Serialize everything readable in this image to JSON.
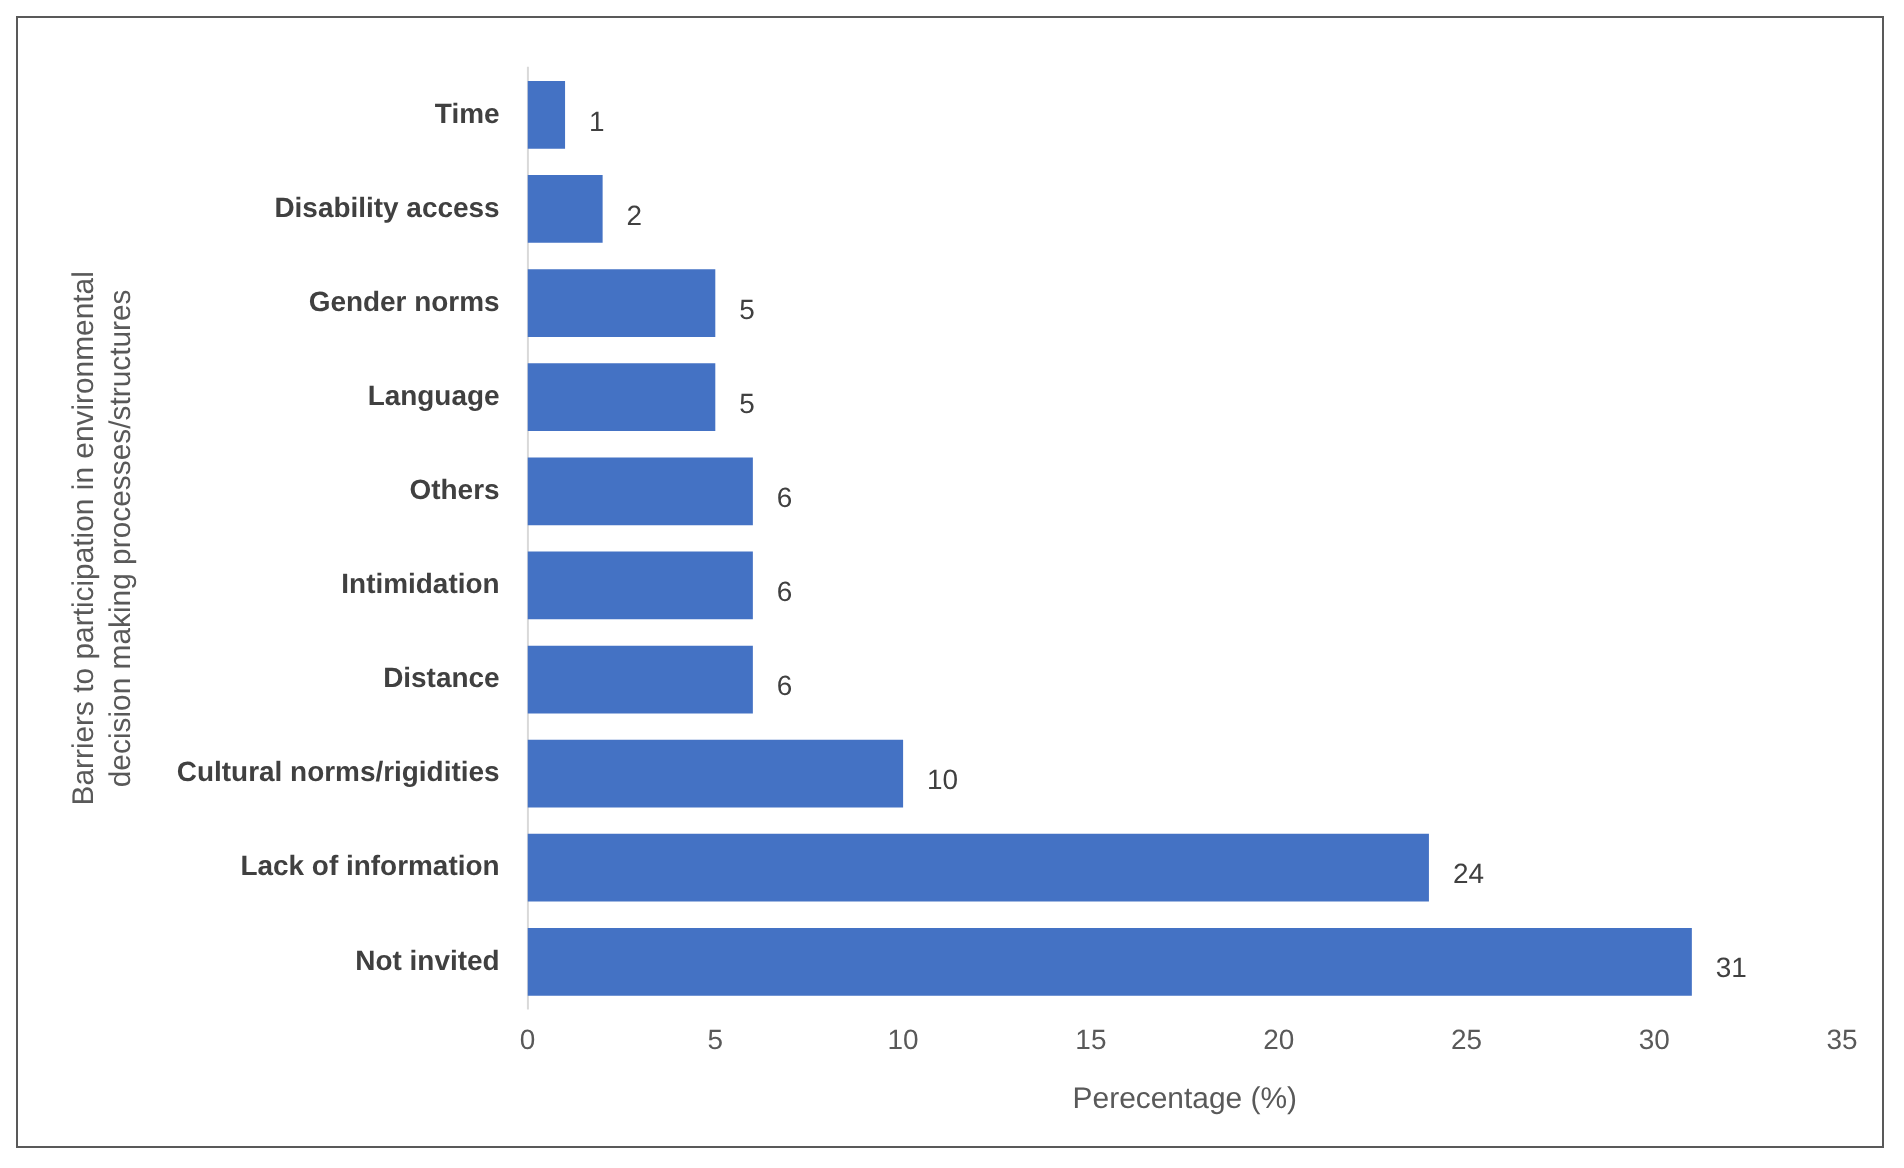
{
  "chart_data": {
    "type": "bar",
    "orientation": "horizontal",
    "categories": [
      "Time",
      "Disability access",
      "Gender norms",
      "Language",
      "Others",
      "Intimidation",
      "Distance",
      "Cultural norms/rigidities",
      "Lack of information",
      "Not invited"
    ],
    "values": [
      1,
      2,
      5,
      5,
      6,
      6,
      6,
      10,
      24,
      31
    ],
    "color": "#4472c4",
    "xlim": [
      0,
      35
    ],
    "xticks": [
      0,
      5,
      10,
      15,
      20,
      25,
      30,
      35
    ],
    "grid": false,
    "data_labels": true,
    "legend": false,
    "xlabel": "Perecentage (%)",
    "ylabel": "Barriers to participation in environmental decision making processes/structures"
  }
}
